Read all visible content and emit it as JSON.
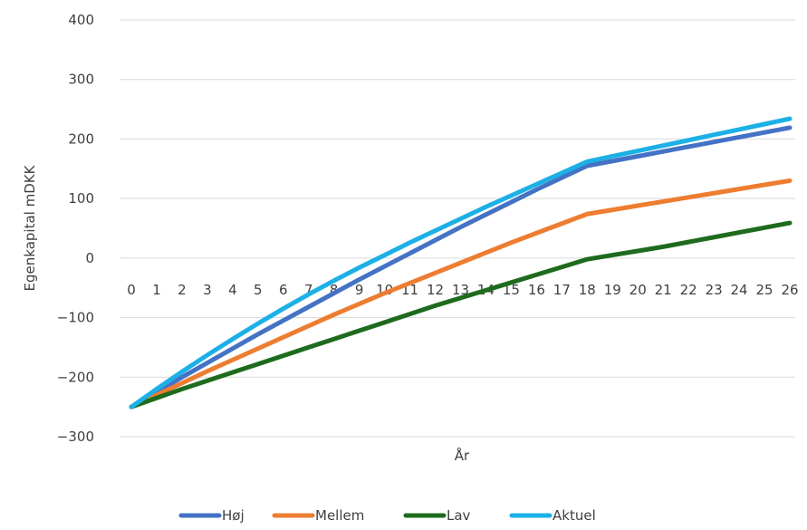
{
  "chart_data": {
    "type": "line",
    "xlabel": "År",
    "ylabel": "Egenkapital mDKK",
    "x": [
      0,
      1,
      2,
      3,
      4,
      5,
      6,
      7,
      8,
      9,
      10,
      11,
      12,
      13,
      14,
      15,
      16,
      17,
      18,
      19,
      20,
      21,
      22,
      23,
      24,
      25,
      26
    ],
    "x_tick_labels": [
      "0",
      "1",
      "2",
      "3",
      "4",
      "5",
      "6",
      "7",
      "8",
      "9",
      "10",
      "11",
      "12",
      "13",
      "14",
      "15",
      "16",
      "17",
      "18",
      "19",
      "20",
      "21",
      "22",
      "23",
      "24",
      "25",
      "26"
    ],
    "ylim": [
      -300,
      400
    ],
    "y_ticks": [
      -300,
      -200,
      -100,
      0,
      100,
      200,
      300,
      400
    ],
    "y_tick_labels": [
      "−300",
      "−200",
      "−100",
      "0",
      "100",
      "200",
      "300",
      "400"
    ],
    "grid": "horizontal",
    "legend_position": "bottom",
    "series": [
      {
        "name": "Høj",
        "color": "#4472C4",
        "values": [
          -250,
          -225,
          -200,
          -176,
          -152,
          -128,
          -105,
          -82,
          -59,
          -36,
          -14,
          8,
          30,
          52,
          73,
          94,
          115,
          135,
          155,
          163,
          171,
          179,
          187,
          195,
          203,
          211,
          219
        ]
      },
      {
        "name": "Mellem",
        "color": "#ED7D31",
        "values": [
          -250,
          -230,
          -210,
          -190,
          -171,
          -152,
          -133,
          -114,
          -95,
          -77,
          -59,
          -42,
          -25,
          -8,
          9,
          26,
          42,
          58,
          74,
          81,
          88,
          95,
          102,
          109,
          116,
          123,
          130
        ]
      },
      {
        "name": "Lav",
        "color": "#1E6B1E",
        "values": [
          -250,
          -235,
          -220,
          -206,
          -192,
          -178,
          -164,
          -150,
          -136,
          -122,
          -108,
          -94,
          -80,
          -67,
          -54,
          -41,
          -28,
          -15,
          -2,
          5,
          12,
          19,
          27,
          35,
          43,
          51,
          59
        ]
      },
      {
        "name": "Aktuel",
        "color": "#1CB0E6",
        "values": [
          -250,
          -220,
          -191,
          -163,
          -136,
          -110,
          -85,
          -61,
          -38,
          -16,
          5,
          26,
          46,
          66,
          86,
          105,
          124,
          143,
          162,
          171,
          180,
          189,
          198,
          207,
          216,
          225,
          234
        ]
      }
    ]
  }
}
